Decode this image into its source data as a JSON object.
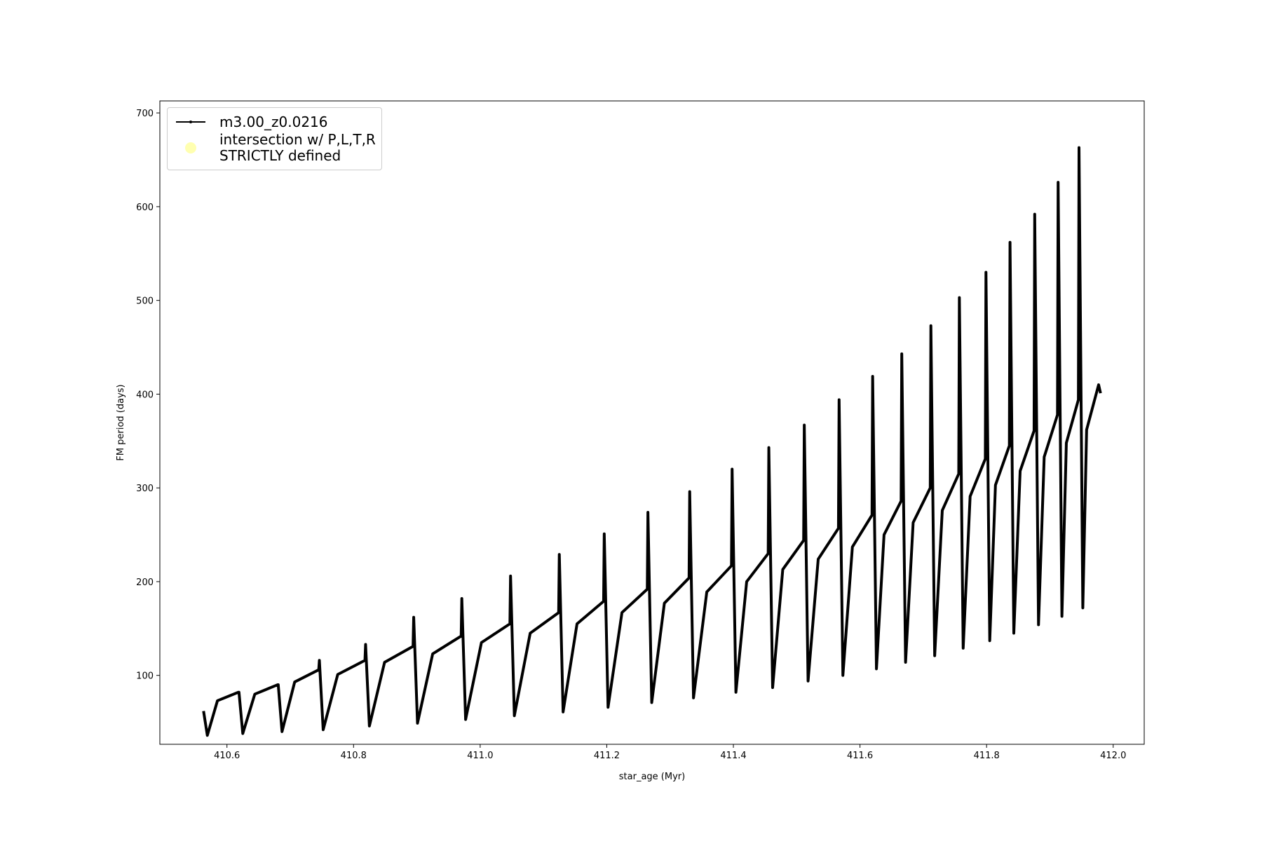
{
  "chart_data": {
    "type": "line",
    "xlabel": "star_age (Myr)",
    "ylabel": "FM period (days)",
    "xlim": [
      410.494,
      412.049
    ],
    "ylim": [
      26.5,
      712.8
    ],
    "xticks": [
      410.6,
      410.8,
      {
        "value": 411.0,
        "label": "411.0"
      },
      411.2,
      411.4,
      411.6,
      411.8,
      {
        "value": 412.0,
        "label": "412.0"
      }
    ],
    "yticks": [
      100,
      200,
      300,
      400,
      500,
      600,
      700
    ],
    "legend": "upper left",
    "series": [
      {
        "name": "m3.00_z0.0216",
        "color": "#000000",
        "x": [
          410.563,
          410.569,
          410.585,
          410.618,
          410.619,
          410.625,
          410.644,
          410.68,
          410.681,
          410.687,
          410.707,
          410.745,
          410.746,
          410.752,
          410.775,
          410.818,
          410.819,
          410.825,
          410.849,
          410.894,
          410.895,
          410.901,
          410.925,
          410.97,
          410.971,
          410.977,
          411.002,
          411.047,
          411.048,
          411.054,
          411.079,
          411.124,
          411.125,
          411.131,
          411.153,
          411.195,
          411.196,
          411.202,
          411.224,
          411.264,
          411.265,
          411.271,
          411.291,
          411.33,
          411.331,
          411.337,
          411.358,
          411.397,
          411.398,
          411.404,
          411.421,
          411.455,
          411.456,
          411.462,
          411.478,
          411.511,
          411.512,
          411.518,
          411.534,
          411.566,
          411.567,
          411.573,
          411.588,
          411.619,
          411.62,
          411.626,
          411.638,
          411.665,
          411.666,
          411.672,
          411.684,
          411.711,
          411.712,
          411.718,
          411.73,
          411.756,
          411.757,
          411.763,
          411.774,
          411.798,
          411.799,
          411.805,
          411.814,
          411.836,
          411.837,
          411.843,
          411.853,
          411.875,
          411.876,
          411.882,
          411.891,
          411.912,
          411.913,
          411.919,
          411.926,
          411.945,
          411.946,
          411.952,
          411.958,
          411.977,
          411.98
        ],
        "values": [
          62,
          36,
          73,
          82,
          82,
          38,
          80,
          90,
          90,
          40,
          93,
          106,
          116,
          42,
          101,
          116,
          133,
          46,
          114,
          131,
          162,
          49,
          123,
          142,
          182,
          53,
          135,
          155,
          206,
          57,
          145,
          167,
          229,
          61,
          155,
          179,
          251,
          66,
          167,
          192,
          274,
          71,
          177,
          204,
          296,
          76,
          189,
          217,
          320,
          82,
          200,
          230,
          343,
          87,
          213,
          244,
          367,
          94,
          224,
          257,
          394,
          100,
          237,
          271,
          419,
          107,
          250,
          286,
          443,
          114,
          263,
          300,
          473,
          121,
          276,
          315,
          503,
          129,
          291,
          331,
          530,
          137,
          303,
          345,
          562,
          145,
          318,
          361,
          592,
          154,
          333,
          378,
          626,
          163,
          348,
          394,
          663,
          172,
          362,
          410,
          401
        ]
      },
      {
        "name": "intersection w/ P,L,T,R\nSTRICTLY defined",
        "color": "#ffffb0",
        "x": [],
        "values": []
      }
    ]
  }
}
